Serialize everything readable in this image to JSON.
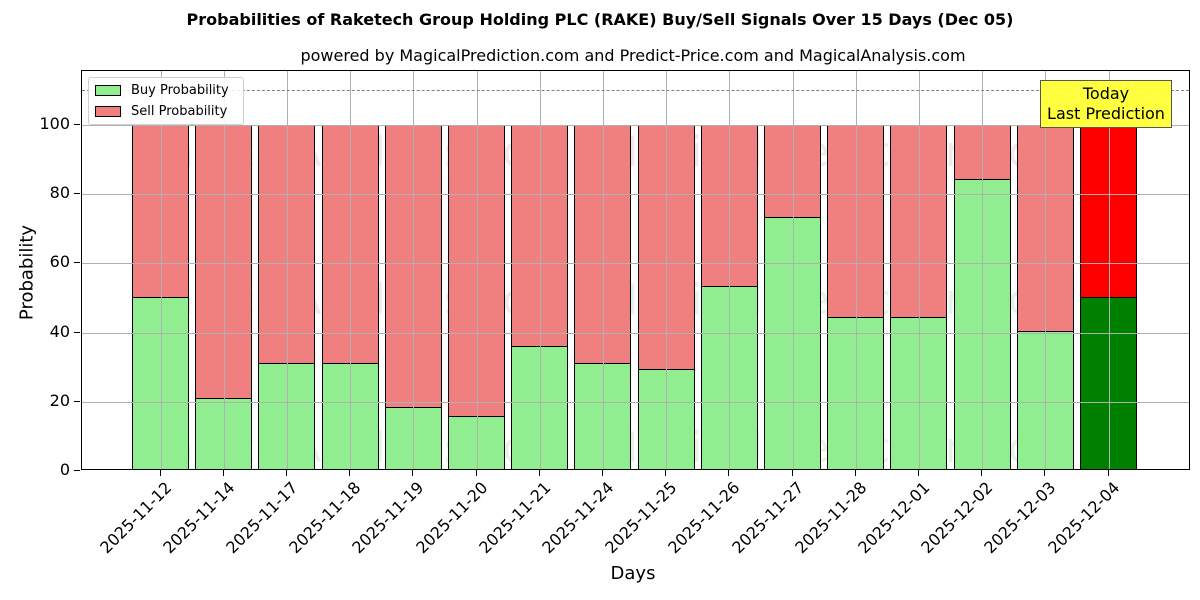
{
  "title": "Probabilities of Raketech Group Holding PLC (RAKE) Buy/Sell Signals Over 15 Days (Dec 05)",
  "subtitle": "powered by MagicalPrediction.com and Predict-Price.com and MagicalAnalysis.com",
  "legend": {
    "buy_label": "Buy Probability",
    "sell_label": "Sell Probability"
  },
  "annotation": {
    "line1": "Today",
    "line2": "Last Prediction"
  },
  "watermarks": [
    "MagicalAnalysis.com",
    "MagicalPrediction.com"
  ],
  "colors": {
    "buy": "#90ee90",
    "sell": "#f08080",
    "buy_today": "#008000",
    "sell_today": "#ff0000",
    "annotation_bg": "#ffff40"
  },
  "chart_data": {
    "type": "bar",
    "stacked": true,
    "title": "Probabilities of Raketech Group Holding PLC (RAKE) Buy/Sell Signals Over 15 Days (Dec 05)",
    "subtitle": "powered by MagicalPrediction.com and Predict-Price.com and MagicalAnalysis.com",
    "xlabel": "Days",
    "ylabel": "Probability",
    "ylim": [
      0,
      115
    ],
    "yticks": [
      0,
      20,
      40,
      60,
      80,
      100
    ],
    "grid": true,
    "legend_position": "upper left",
    "reference_line": {
      "y": 110,
      "style": "dashed",
      "color": "#808080"
    },
    "categories": [
      "2025-11-12",
      "2025-11-14",
      "2025-11-17",
      "2025-11-18",
      "2025-11-19",
      "2025-11-20",
      "2025-11-21",
      "2025-11-24",
      "2025-11-25",
      "2025-11-26",
      "2025-11-27",
      "2025-11-28",
      "2025-12-01",
      "2025-12-02",
      "2025-12-03",
      "2025-12-04"
    ],
    "series": [
      {
        "name": "Buy Probability",
        "values": [
          50.3,
          21.2,
          31.1,
          31.1,
          18.5,
          15.8,
          36.0,
          31.1,
          29.6,
          53.6,
          73.3,
          44.4,
          44.4,
          84.5,
          40.5,
          50.3
        ]
      },
      {
        "name": "Sell Probability",
        "values": [
          49.7,
          78.8,
          68.9,
          68.9,
          81.5,
          84.2,
          64.0,
          68.9,
          70.4,
          46.4,
          26.7,
          55.6,
          55.6,
          15.5,
          59.5,
          49.7
        ]
      }
    ],
    "highlight": {
      "index": 15,
      "label": "Today\nLast Prediction"
    }
  }
}
